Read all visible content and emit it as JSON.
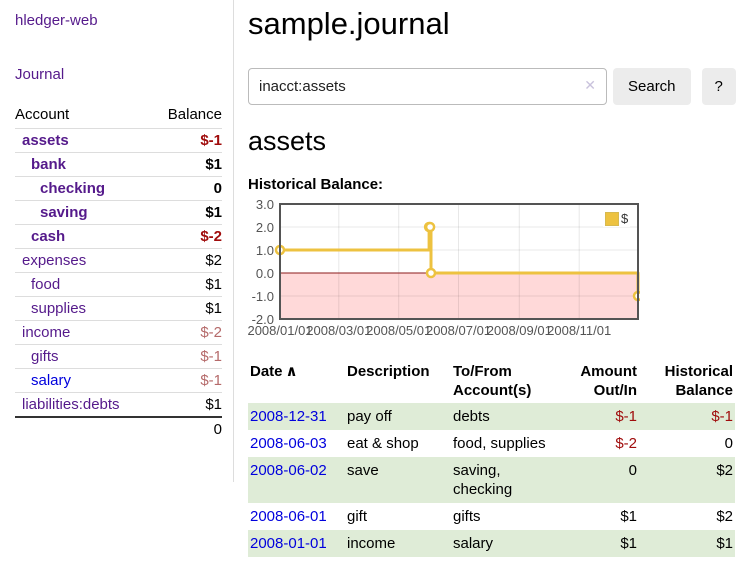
{
  "colors": {
    "link_purple": "#551a8b",
    "link_blue": "#0000dd",
    "negative_strong": "#a00c0c",
    "negative_muted": "#b56a6a",
    "row_shade_green": "#dfecd7",
    "button_bg": "#ececec",
    "chart_line": "#edc240",
    "chart_negative_fill": "#ffd9d9",
    "chart_zero_line": "#8b1a1a",
    "chart_frame": "#545454"
  },
  "sidebar": {
    "app_title": "hledger-web",
    "nav": {
      "journal_label": "Journal"
    },
    "table": {
      "account_header": "Account",
      "balance_header": "Balance"
    },
    "accounts": [
      {
        "name": "assets",
        "indent": 1,
        "bold": true,
        "visited": true,
        "balance": "$-1",
        "negative": "strong"
      },
      {
        "name": "bank",
        "indent": 2,
        "bold": true,
        "visited": true,
        "balance": "$1",
        "negative": null
      },
      {
        "name": "checking",
        "indent": 3,
        "bold": true,
        "visited": true,
        "balance": "0",
        "negative": null
      },
      {
        "name": "saving",
        "indent": 3,
        "bold": true,
        "visited": true,
        "balance": "$1",
        "negative": null
      },
      {
        "name": "cash",
        "indent": 2,
        "bold": true,
        "visited": true,
        "balance": "$-2",
        "negative": "strong"
      },
      {
        "name": "expenses",
        "indent": 1,
        "bold": false,
        "visited": true,
        "balance": "$2",
        "negative": null
      },
      {
        "name": "food",
        "indent": 2,
        "bold": false,
        "visited": true,
        "balance": "$1",
        "negative": null
      },
      {
        "name": "supplies",
        "indent": 2,
        "bold": false,
        "visited": true,
        "balance": "$1",
        "negative": null
      },
      {
        "name": "income",
        "indent": 1,
        "bold": false,
        "visited": true,
        "balance": "$-2",
        "negative": "muted"
      },
      {
        "name": "gifts",
        "indent": 2,
        "bold": false,
        "visited": true,
        "balance": "$-1",
        "negative": "muted"
      },
      {
        "name": "salary",
        "indent": 2,
        "bold": false,
        "visited": false,
        "balance": "$-1",
        "negative": "muted"
      },
      {
        "name": "liabilities:debts",
        "indent": 1,
        "bold": false,
        "visited": true,
        "balance": "$1",
        "negative": null
      }
    ],
    "total": "0"
  },
  "main": {
    "title": "sample.journal",
    "search": {
      "value": "inacct:assets",
      "clear_icon": "✕",
      "button_label": "Search",
      "help_label": "?"
    },
    "account_heading": "assets",
    "chart_label": "Historical Balance:"
  },
  "chart_data": {
    "type": "line",
    "title": "Historical Balance:",
    "style": "steps",
    "legend": [
      {
        "label": "$",
        "color": "#edc240"
      }
    ],
    "legend_position": "top-right",
    "grid": true,
    "negative_region": true,
    "negative_region_color": "#ffd9d9",
    "zero_line_color": "#8b1a1a",
    "xlim": [
      "2008-01-01",
      "2008-12-31"
    ],
    "ylim": [
      -2,
      3
    ],
    "series": [
      {
        "name": "$",
        "color": "#edc240",
        "points": [
          [
            "2008-01-01",
            1
          ],
          [
            "2008-06-01",
            2
          ],
          [
            "2008-06-02",
            2
          ],
          [
            "2008-06-03",
            0
          ],
          [
            "2008-12-31",
            -1
          ]
        ]
      }
    ],
    "x_ticks": [
      {
        "date": "2008-01-01",
        "label": "2008/01/01"
      },
      {
        "date": "2008-03-01",
        "label": "2008/03/01"
      },
      {
        "date": "2008-05-01",
        "label": "2008/05/01"
      },
      {
        "date": "2008-07-01",
        "label": "2008/07/01"
      },
      {
        "date": "2008-09-01",
        "label": "2008/09/01"
      },
      {
        "date": "2008-11-01",
        "label": "2008/11/01"
      }
    ],
    "y_ticks": [
      {
        "value": 3,
        "label": "3.0"
      },
      {
        "value": 2,
        "label": "2.0"
      },
      {
        "value": 1,
        "label": "1.0"
      },
      {
        "value": 0,
        "label": "0.0"
      },
      {
        "value": -1,
        "label": "-1.0"
      },
      {
        "value": -2,
        "label": "-2.0"
      }
    ]
  },
  "register": {
    "columns": {
      "date": "Date",
      "description": "Description",
      "accounts": "To/From Account(s)",
      "amount": "Amount Out/In",
      "balance": "Historical Balance"
    },
    "sort_icon": "∧",
    "rows": [
      {
        "date": "2008-12-31",
        "description": "pay off",
        "accounts": "debts",
        "amount": "$-1",
        "amount_negative": true,
        "balance": "$-1",
        "balance_negative": true,
        "shaded": true
      },
      {
        "date": "2008-06-03",
        "description": "eat & shop",
        "accounts": "food, supplies",
        "amount": "$-2",
        "amount_negative": true,
        "balance": "0",
        "balance_negative": false,
        "shaded": false
      },
      {
        "date": "2008-06-02",
        "description": "save",
        "accounts": "saving, checking",
        "amount": "0",
        "amount_negative": false,
        "balance": "$2",
        "balance_negative": false,
        "shaded": true
      },
      {
        "date": "2008-06-01",
        "description": "gift",
        "accounts": "gifts",
        "amount": "$1",
        "amount_negative": false,
        "balance": "$2",
        "balance_negative": false,
        "shaded": false
      },
      {
        "date": "2008-01-01",
        "description": "income",
        "accounts": "salary",
        "amount": "$1",
        "amount_negative": false,
        "balance": "$1",
        "balance_negative": false,
        "shaded": true
      }
    ]
  }
}
